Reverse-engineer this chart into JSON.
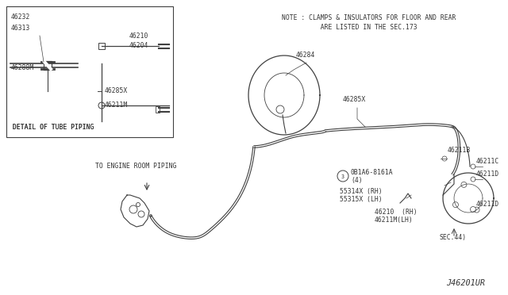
{
  "bg_color": "#ffffff",
  "line_color": "#404040",
  "text_color": "#333333",
  "title_bottom_right": "J46201UR",
  "note_line1": "NOTE : CLAMPS & INSULATORS FOR FLOOR AND REAR",
  "note_line2": "          ARE LISTED IN THE SEC.173",
  "detail_box_title": "DETAIL OF TUBE PIPING",
  "to_engine": "TO ENGINE ROOM PIPING",
  "fs": 5.8
}
